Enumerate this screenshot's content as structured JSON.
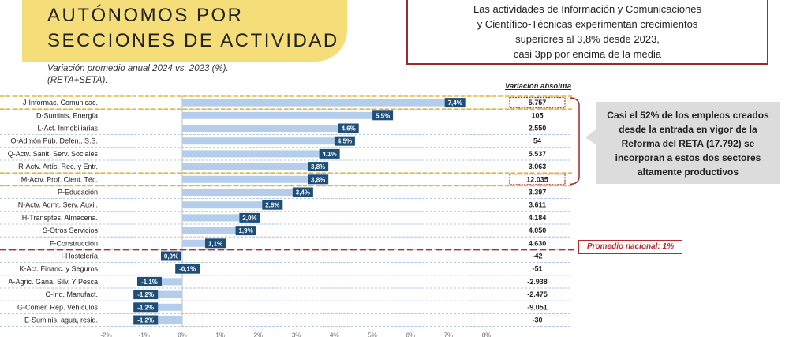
{
  "header": {
    "title_line1": "AUTÓNOMOS POR",
    "title_line2": "SECCIONES DE ACTIVIDAD",
    "subtitle_line1": "Variación promedio anual 2024 vs. 2023 (%).",
    "subtitle_line2": "(RETA+SETA)."
  },
  "note": {
    "line1": "Las actividades de Información y Comunicaciones",
    "line2": "y Científico-Técnicas experimentan crecimientos",
    "line3": "superiores al 3,8% desde 2023,",
    "line4": "casi 3pp por encima de la media"
  },
  "side_note": {
    "line1": "Casi el 52% de los empleos creados",
    "line2": "desde la entrada en vigor de la",
    "line3": "Reforma del RETA (17.792) se",
    "line4": "incorporan a estos dos sectores",
    "line5": "altamente productivos"
  },
  "average": {
    "label": "Promedio nacional: 1%"
  },
  "colors": {
    "bar": "#b4cdea",
    "label_box": "#1f4e79",
    "highlight": "#e8b923",
    "average_line": "#b8282d",
    "accent_red": "#9e2a2e"
  },
  "chart_data": {
    "type": "bar",
    "orientation": "horizontal",
    "title": "",
    "xlabel": "",
    "ylabel": "",
    "xlim": [
      -2,
      8
    ],
    "ticks": [
      "-2%",
      "-1%",
      "0%",
      "1%",
      "2%",
      "3%",
      "4%",
      "5%",
      "6%",
      "7%",
      "8%"
    ],
    "abs_header": "Variación absoluta",
    "categories": [
      "J-Informac. Comunicac.",
      "D-Suminis. Energía",
      "L-Act. Inmobiliarias",
      "O-Admón Púb. Defen., S.S.",
      "Q-Actv. Sanit. Serv. Sociales",
      "R-Actv. Artís. Rec. y Entr.",
      "M-Actv. Prof. Cient. Téc.",
      "P-Educación",
      "N-Actv. Admt. Serv. Auxil.",
      "H-Transptes. Almacena.",
      "S-Otros Servicios",
      "F-Construcción",
      "I-Hostelería",
      "K-Act. Financ. y Seguros",
      "A-Agric. Gana. Silv. Y Pesca",
      "C-Ind. Manufact.",
      "G-Comer. Rep. Vehículos",
      "E-Suminis. agua, resid."
    ],
    "values": [
      7.4,
      5.5,
      4.6,
      4.5,
      4.1,
      3.8,
      3.8,
      3.4,
      2.6,
      2.0,
      1.9,
      1.1,
      0.0,
      -0.1,
      -1.1,
      -1.2,
      -1.2,
      -1.2
    ],
    "value_labels": [
      "7,4%",
      "5,5%",
      "4,6%",
      "4,5%",
      "4,1%",
      "3,8%",
      "3,8%",
      "3,4%",
      "2,6%",
      "2,0%",
      "1,9%",
      "1,1%",
      "0,0%",
      "-0,1%",
      "-1,1%",
      "-1,2%",
      "-1,2%",
      "-1,2%"
    ],
    "absolute": [
      "5.757",
      "105",
      "2.550",
      "54",
      "5.537",
      "3.063",
      "12.035",
      "3.397",
      "3.611",
      "4.184",
      "4.050",
      "4.630",
      "-42",
      "-51",
      "-2.938",
      "-2.475",
      "-9.051",
      "-30"
    ],
    "highlighted": [
      0,
      6
    ],
    "average": 1
  }
}
